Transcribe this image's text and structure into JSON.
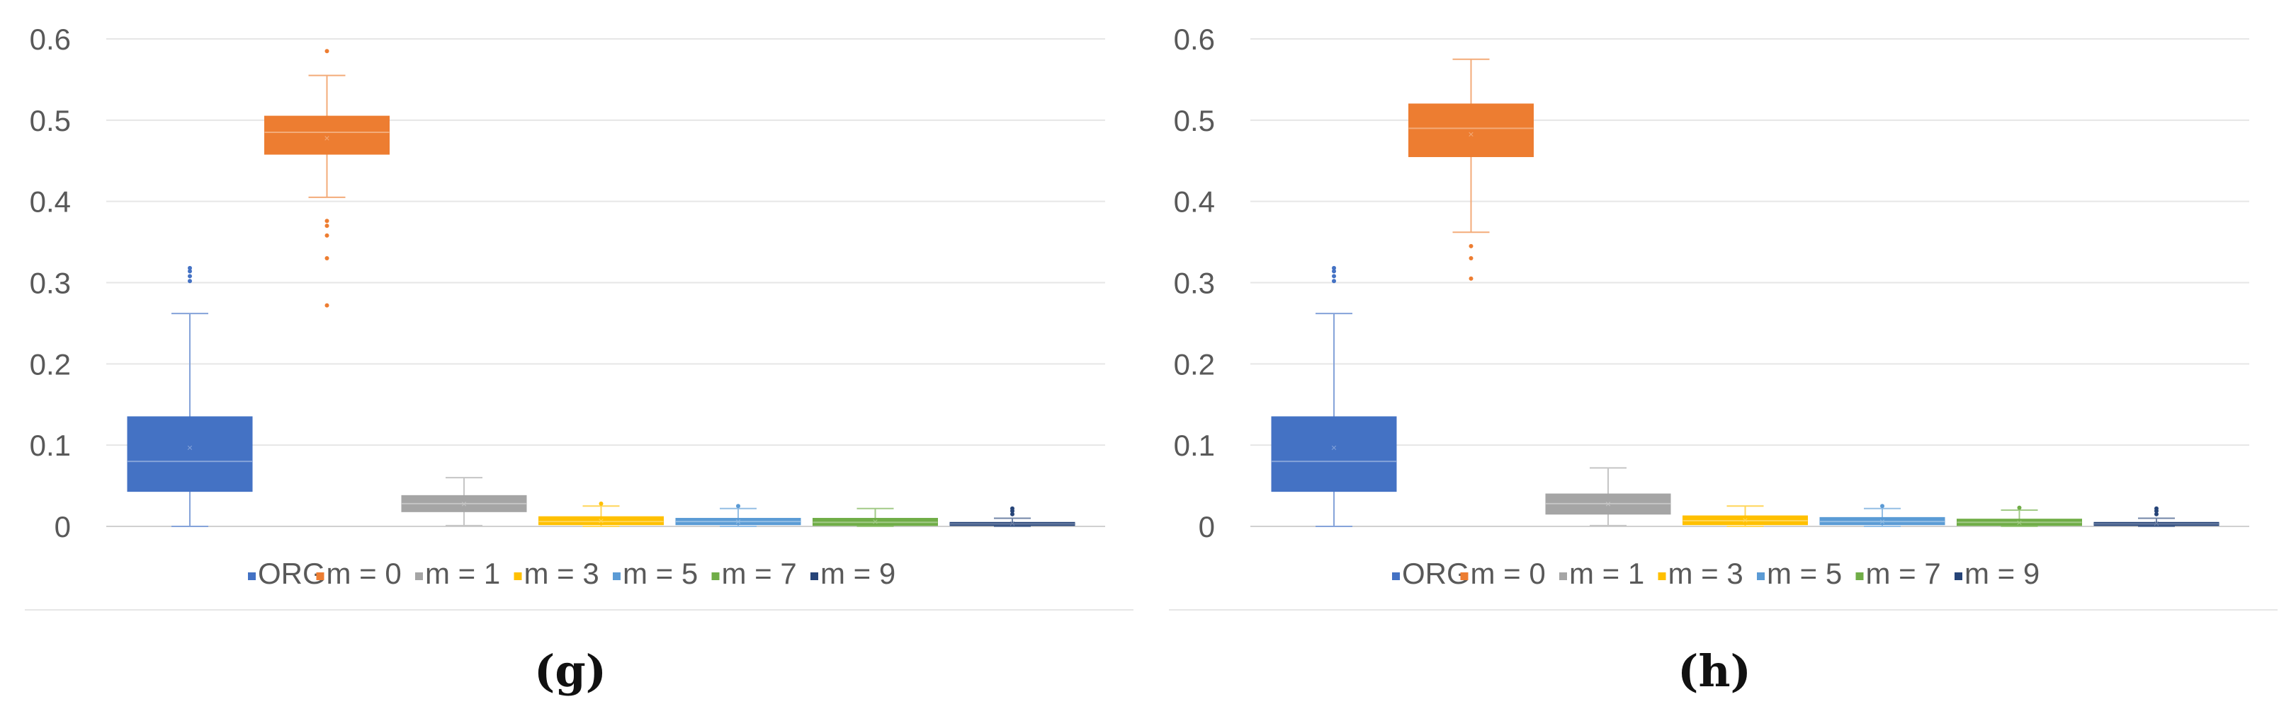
{
  "chart_data": [
    {
      "type": "box",
      "panel_label": "(g)",
      "ylim": [
        0,
        0.6
      ],
      "yticks": [
        "0",
        "0.1",
        "0.2",
        "0.3",
        "0.4",
        "0.5",
        "0.6"
      ],
      "grid": "horizontal",
      "legend_position": "bottom",
      "series": [
        {
          "name": "ORG",
          "color": "#4472C4",
          "min": 0.0,
          "q1": 0.043,
          "median": 0.08,
          "q3": 0.135,
          "max": 0.262,
          "mean": 0.097,
          "outliers": [
            0.302,
            0.308,
            0.314,
            0.318
          ]
        },
        {
          "name": "m = 0",
          "color": "#ED7D31",
          "min": 0.405,
          "q1": 0.458,
          "median": 0.485,
          "q3": 0.505,
          "max": 0.555,
          "mean": 0.478,
          "outliers": [
            0.272,
            0.33,
            0.358,
            0.37,
            0.376,
            0.585
          ]
        },
        {
          "name": "m = 1",
          "color": "#A5A5A5",
          "min": 0.001,
          "q1": 0.018,
          "median": 0.028,
          "q3": 0.038,
          "max": 0.06,
          "mean": 0.028,
          "outliers": []
        },
        {
          "name": "m = 3",
          "color": "#FFC000",
          "min": 0.0,
          "q1": 0.002,
          "median": 0.006,
          "q3": 0.012,
          "max": 0.025,
          "mean": 0.007,
          "outliers": [
            0.028
          ]
        },
        {
          "name": "m = 5",
          "color": "#5B9BD5",
          "min": 0.0,
          "q1": 0.002,
          "median": 0.006,
          "q3": 0.01,
          "max": 0.022,
          "mean": 0.006,
          "outliers": [
            0.025
          ]
        },
        {
          "name": "m = 7",
          "color": "#70AD47",
          "min": 0.0,
          "q1": 0.001,
          "median": 0.005,
          "q3": 0.01,
          "max": 0.022,
          "mean": 0.006,
          "outliers": []
        },
        {
          "name": "m = 9",
          "color": "#264478",
          "min": 0.0,
          "q1": 0.001,
          "median": 0.003,
          "q3": 0.005,
          "max": 0.01,
          "mean": 0.004,
          "outliers": [
            0.015,
            0.019,
            0.022
          ]
        }
      ]
    },
    {
      "type": "box",
      "panel_label": "(h)",
      "ylim": [
        0,
        0.6
      ],
      "yticks": [
        "0",
        "0.1",
        "0.2",
        "0.3",
        "0.4",
        "0.5",
        "0.6"
      ],
      "grid": "horizontal",
      "legend_position": "bottom",
      "series": [
        {
          "name": "ORG",
          "color": "#4472C4",
          "min": 0.0,
          "q1": 0.043,
          "median": 0.08,
          "q3": 0.135,
          "max": 0.262,
          "mean": 0.097,
          "outliers": [
            0.302,
            0.308,
            0.314,
            0.318
          ]
        },
        {
          "name": "m = 0",
          "color": "#ED7D31",
          "min": 0.362,
          "q1": 0.455,
          "median": 0.49,
          "q3": 0.52,
          "max": 0.575,
          "mean": 0.483,
          "outliers": [
            0.305,
            0.33,
            0.345
          ]
        },
        {
          "name": "m = 1",
          "color": "#A5A5A5",
          "min": 0.001,
          "q1": 0.015,
          "median": 0.028,
          "q3": 0.04,
          "max": 0.072,
          "mean": 0.028,
          "outliers": []
        },
        {
          "name": "m = 3",
          "color": "#FFC000",
          "min": 0.0,
          "q1": 0.002,
          "median": 0.007,
          "q3": 0.013,
          "max": 0.025,
          "mean": 0.008,
          "outliers": []
        },
        {
          "name": "m = 5",
          "color": "#5B9BD5",
          "min": 0.0,
          "q1": 0.002,
          "median": 0.006,
          "q3": 0.011,
          "max": 0.022,
          "mean": 0.006,
          "outliers": [
            0.025
          ]
        },
        {
          "name": "m = 7",
          "color": "#70AD47",
          "min": 0.0,
          "q1": 0.001,
          "median": 0.005,
          "q3": 0.009,
          "max": 0.02,
          "mean": 0.005,
          "outliers": [
            0.023
          ]
        },
        {
          "name": "m = 9",
          "color": "#264478",
          "min": 0.0,
          "q1": 0.001,
          "median": 0.003,
          "q3": 0.005,
          "max": 0.01,
          "mean": 0.004,
          "outliers": [
            0.015,
            0.019,
            0.022
          ]
        }
      ]
    }
  ]
}
